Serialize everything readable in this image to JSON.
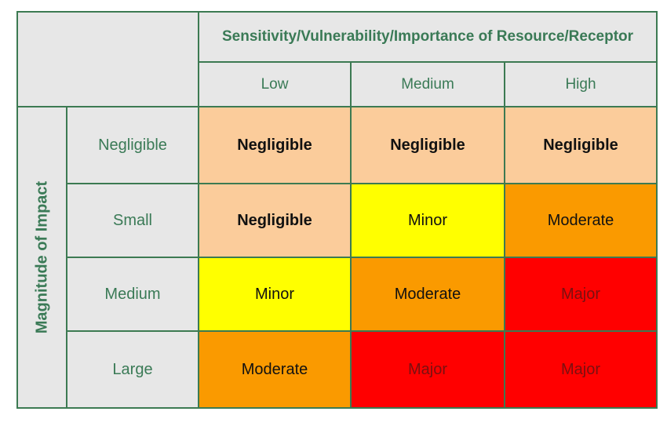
{
  "header": {
    "title": "Sensitivity/Vulnerability/Importance of Resource/Receptor",
    "columns": [
      "Low",
      "Medium",
      "High"
    ]
  },
  "side_label": "Magnitude of Impact",
  "rows": [
    {
      "label": "Negligible",
      "cells": [
        {
          "text": "Negligible",
          "level": "negligible"
        },
        {
          "text": "Negligible",
          "level": "negligible"
        },
        {
          "text": "Negligible",
          "level": "negligible"
        }
      ]
    },
    {
      "label": "Small",
      "cells": [
        {
          "text": "Negligible",
          "level": "negligible"
        },
        {
          "text": "Minor",
          "level": "minor"
        },
        {
          "text": "Moderate",
          "level": "moderate"
        }
      ]
    },
    {
      "label": "Medium",
      "cells": [
        {
          "text": "Minor",
          "level": "minor"
        },
        {
          "text": "Moderate",
          "level": "moderate"
        },
        {
          "text": "Major",
          "level": "major"
        }
      ]
    },
    {
      "label": "Large",
      "cells": [
        {
          "text": "Moderate",
          "level": "moderate"
        },
        {
          "text": "Major",
          "level": "major"
        },
        {
          "text": "Major",
          "level": "major"
        }
      ]
    }
  ],
  "colors": {
    "negligible": "#fbcc9b",
    "minor": "#ffff00",
    "moderate": "#fa9a00",
    "major": "#ff0000",
    "header_bg": "#e7e7e7",
    "border": "#3c7a52",
    "label_text": "#3a7a56"
  }
}
